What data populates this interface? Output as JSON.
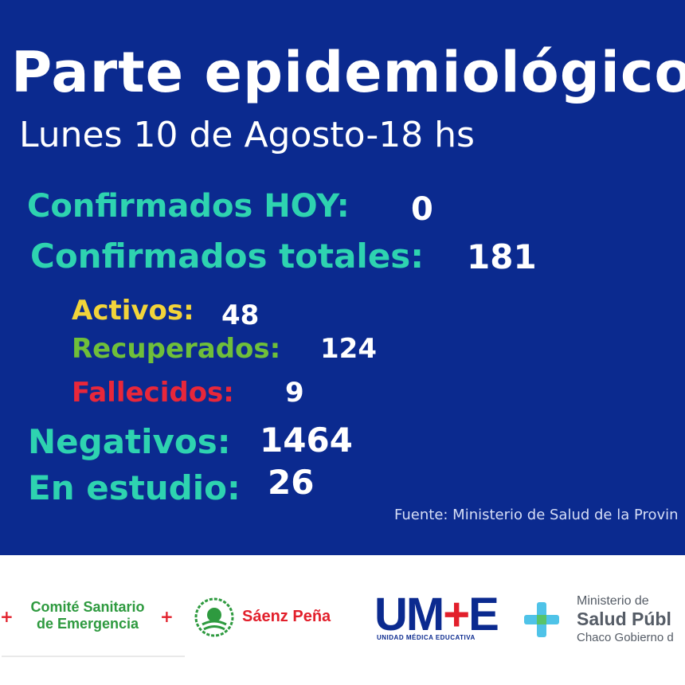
{
  "header": {
    "title": "Parte epidemiológico",
    "subtitle": "Lunes 10 de Agosto-18 hs"
  },
  "stats": {
    "confirmados_hoy": {
      "label": "Confirmados HOY:",
      "value": "0",
      "color": "#2ed3b0"
    },
    "confirmados_totales": {
      "label": "Confirmados totales:",
      "value": "181",
      "color": "#2ed3b0"
    },
    "activos": {
      "label": "Activos:",
      "value": "48",
      "color": "#f2d43a"
    },
    "recuperados": {
      "label": "Recuperados:",
      "value": "124",
      "color": "#6fbf3a"
    },
    "fallecidos": {
      "label": "Fallecidos:",
      "value": "9",
      "color": "#e8273a"
    },
    "negativos": {
      "label": "Negativos:",
      "value": "1464",
      "color": "#2ed3b0"
    },
    "en_estudio": {
      "label": "En estudio:",
      "value": "26",
      "color": "#2ed3b0"
    }
  },
  "source": "Fuente: Ministerio de Salud de la Provin",
  "logos": {
    "comite": {
      "line1": "Comité Sanitario",
      "line2": "de Emergencia",
      "cross": "+"
    },
    "saenz_pena": {
      "text": "Sáenz Peña"
    },
    "ume": {
      "main": "UM",
      "plus": "+",
      "end": "E",
      "sub": "UNIDAD MÉDICA EDUCATIVA"
    },
    "ministerio": {
      "line1": "Ministerio de",
      "line2": "Salud Públ",
      "line3": "Chaco Gobierno d"
    }
  },
  "colors": {
    "background": "#0b2a8f",
    "teal": "#2ed3b0",
    "yellow": "#f2d43a",
    "green": "#6fbf3a",
    "red": "#e8273a"
  }
}
